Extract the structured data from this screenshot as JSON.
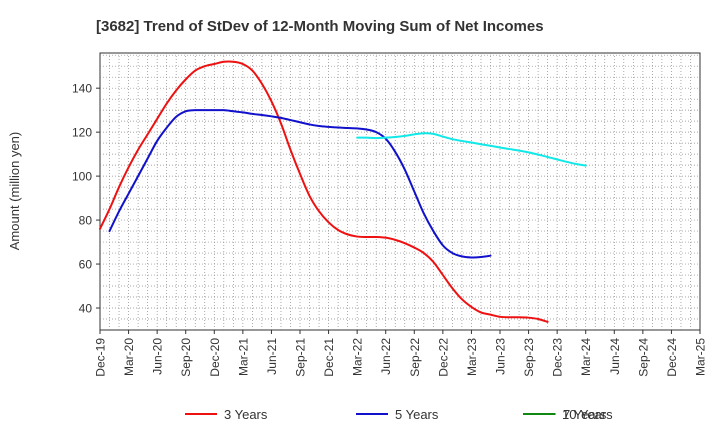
{
  "chart_data": {
    "type": "line",
    "title": "[3682]  Trend of StDev of 12-Month Moving Sum of Net Incomes",
    "xlabel": "",
    "ylabel": "Amount (million yen)",
    "ylim": [
      30,
      156
    ],
    "yticks": [
      40,
      60,
      80,
      100,
      120,
      140
    ],
    "grid": true,
    "legend_position": "bottom",
    "x_tick_labels": [
      "Dec-19",
      "Mar-20",
      "Jun-20",
      "Sep-20",
      "Dec-20",
      "Mar-21",
      "Jun-21",
      "Sep-21",
      "Dec-21",
      "Mar-22",
      "Jun-22",
      "Sep-22",
      "Dec-22",
      "Mar-23",
      "Jun-23",
      "Sep-23",
      "Dec-23",
      "Mar-24",
      "Jun-24",
      "Sep-24",
      "Dec-24",
      "Mar-25"
    ],
    "x_start": "2019-12",
    "x_step_months": 1,
    "series": [
      {
        "name": "3 Years",
        "color": "#ee1111",
        "start_index": 0,
        "values": [
          76,
          85,
          95,
          104,
          112,
          119,
          126,
          133,
          139,
          144,
          148,
          150,
          151,
          152,
          152,
          151,
          148,
          142,
          134,
          124,
          112,
          101,
          91,
          84,
          79,
          75.5,
          73.5,
          72.5,
          72.3,
          72.3,
          72,
          71,
          69.5,
          67.5,
          65,
          61,
          55,
          49,
          44,
          40.5,
          38,
          37,
          36,
          35.8,
          35.8,
          35.6,
          35,
          33.7
        ]
      },
      {
        "name": "5 Years",
        "color": "#1111cc",
        "start_index": 1,
        "values": [
          75,
          84,
          92,
          100,
          108,
          116,
          122,
          127,
          129.5,
          130,
          130,
          130,
          130,
          129.5,
          129,
          128.3,
          127.8,
          127.2,
          126.5,
          125.5,
          124.5,
          123.5,
          122.8,
          122.4,
          122.1,
          121.9,
          121.7,
          121.2,
          120,
          117,
          111,
          103,
          93,
          83,
          75,
          68.5,
          65,
          63.5,
          63,
          63.2,
          63.8
        ]
      },
      {
        "name": "7 Years",
        "color": "#11e8e8",
        "start_index": 27,
        "values": [
          117.5,
          117.5,
          117.3,
          117.5,
          117.8,
          118.3,
          119,
          119.5,
          119.2,
          118,
          116.8,
          116,
          115.3,
          114.5,
          113.8,
          113,
          112.3,
          111.6,
          110.8,
          109.8,
          108.7,
          107.6,
          106.5,
          105.5,
          104.8
        ]
      },
      {
        "name": "10 Years",
        "color": "#118811",
        "start_index": 0,
        "values": []
      }
    ]
  }
}
